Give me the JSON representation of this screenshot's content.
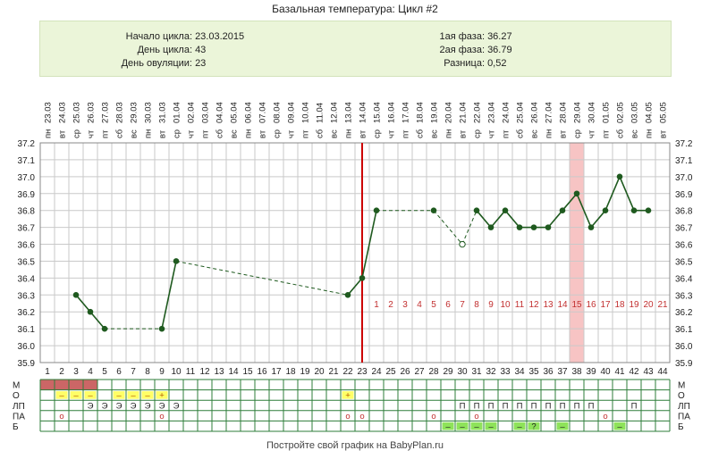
{
  "page": {
    "title": "Базальная температура: Цикл #2",
    "footer": "Постройте свой график на BabyPlan.ru"
  },
  "summary": {
    "cycle_start": {
      "label": "Начало цикла:",
      "value": "23.03.2015"
    },
    "cycle_day": {
      "label": "День цикла:",
      "value": "43"
    },
    "ovulation_day": {
      "label": "День овуляции:",
      "value": "23"
    },
    "phase1": {
      "label": "1ая фаза:",
      "value": "36.27"
    },
    "phase2": {
      "label": "2ая фаза:",
      "value": "36.79"
    },
    "difference": {
      "label": "Разница:",
      "value": "0,52"
    }
  },
  "chart_data": {
    "type": "line",
    "title": "Базальная температура: Цикл #2",
    "x_days": [
      1,
      2,
      3,
      4,
      5,
      6,
      7,
      8,
      9,
      10,
      11,
      12,
      13,
      14,
      15,
      16,
      17,
      18,
      19,
      20,
      21,
      22,
      23,
      24,
      25,
      26,
      27,
      28,
      29,
      30,
      31,
      32,
      33,
      34,
      35,
      36,
      37,
      38,
      39,
      40,
      41,
      42,
      43,
      44
    ],
    "weekdays": [
      "пн",
      "вт",
      "ср",
      "чт",
      "пт",
      "сб",
      "вс",
      "пн",
      "вт",
      "ср",
      "чт",
      "пт",
      "сб",
      "вс",
      "пн",
      "вт",
      "ср",
      "чт",
      "пт",
      "сб",
      "вс",
      "пн",
      "вт",
      "ср",
      "чт",
      "пт",
      "сб",
      "вс",
      "пн",
      "вт",
      "ср",
      "чт",
      "пт",
      "сб",
      "вс",
      "пн",
      "вт",
      "ср",
      "чт",
      "пт",
      "сб",
      "вс",
      "пн",
      "вт"
    ],
    "dates": [
      "23.03",
      "24.03",
      "25.03",
      "26.03",
      "27.03",
      "28.03",
      "29.03",
      "30.03",
      "31.03",
      "01.04",
      "02.04",
      "03.04",
      "04.04",
      "05.04",
      "06.04",
      "07.04",
      "08.04",
      "09.04",
      "10.04",
      "11.04",
      "12.04",
      "13.04",
      "14.04",
      "15.04",
      "16.04",
      "17.04",
      "18.04",
      "19.04",
      "20.04",
      "21.04",
      "22.04",
      "23.04",
      "24.04",
      "25.04",
      "26.04",
      "27.04",
      "28.04",
      "29.04",
      "30.04",
      "01.05",
      "02.05",
      "03.05",
      "04.05",
      "05.05"
    ],
    "ylim": [
      35.9,
      37.2
    ],
    "y_ticks": [
      "37.2",
      "37.1",
      "37.0",
      "36.9",
      "36.8",
      "36.7",
      "36.6",
      "36.5",
      "36.4",
      "36.3",
      "36.2",
      "36.1",
      "36.0",
      "35.9"
    ],
    "series": [
      {
        "points": [
          {
            "day": 3,
            "temp": 36.3
          },
          {
            "day": 4,
            "temp": 36.2
          },
          {
            "day": 5,
            "temp": 36.1
          },
          {
            "day": 9,
            "temp": 36.1
          },
          {
            "day": 10,
            "temp": 36.5
          },
          {
            "day": 22,
            "temp": 36.3
          },
          {
            "day": 23,
            "temp": 36.4
          },
          {
            "day": 24,
            "temp": 36.8
          },
          {
            "day": 28,
            "temp": 36.8
          },
          {
            "day": 30,
            "temp": 36.6,
            "excluded": true
          },
          {
            "day": 31,
            "temp": 36.8
          },
          {
            "day": 32,
            "temp": 36.7
          },
          {
            "day": 33,
            "temp": 36.8
          },
          {
            "day": 34,
            "temp": 36.7
          },
          {
            "day": 35,
            "temp": 36.7
          },
          {
            "day": 36,
            "temp": 36.7
          },
          {
            "day": 37,
            "temp": 36.8
          },
          {
            "day": 38,
            "temp": 36.9
          },
          {
            "day": 39,
            "temp": 36.7
          },
          {
            "day": 40,
            "temp": 36.8
          },
          {
            "day": 41,
            "temp": 37.0
          },
          {
            "day": 42,
            "temp": 36.8
          },
          {
            "day": 43,
            "temp": 36.8
          }
        ]
      }
    ],
    "ovulation_day": 23,
    "highlight_day": 38,
    "luteal_days": {
      "start_day": 24,
      "labels": [
        "1",
        "2",
        "3",
        "4",
        "5",
        "6",
        "7",
        "8",
        "9",
        "10",
        "11",
        "12",
        "13",
        "14",
        "15",
        "16",
        "17",
        "18",
        "19",
        "20",
        "21"
      ]
    },
    "grid": true,
    "colors": {
      "line": "#1f5a1f",
      "point": "#1f5a1f",
      "ovulation": "#cc0000",
      "highlight": "#f7c4c4",
      "luteal_numbers": "#c23030",
      "bleeding": "#cc6666",
      "yellow": "#ffff66",
      "green": "#8ee35a"
    }
  },
  "bottom_table": {
    "row_labels": [
      "М",
      "О",
      "ЛП",
      "ПА",
      "Б"
    ],
    "rows": {
      "M": {
        "bleeding_days": [
          1,
          2,
          3,
          4
        ]
      },
      "O": {
        "cells": [
          {
            "day": 2,
            "text": "–",
            "bg": "yellow"
          },
          {
            "day": 3,
            "text": "–",
            "bg": "yellow"
          },
          {
            "day": 4,
            "text": "–",
            "bg": "yellow"
          },
          {
            "day": 6,
            "text": "–",
            "bg": "yellow"
          },
          {
            "day": 7,
            "text": "–",
            "bg": "yellow"
          },
          {
            "day": 8,
            "text": "–",
            "bg": "yellow"
          },
          {
            "day": 9,
            "text": "+",
            "bg": "yellow"
          },
          {
            "day": 22,
            "text": "+",
            "bg": "yellow"
          }
        ]
      },
      "LP": {
        "cells": [
          {
            "day": 4,
            "text": "Э"
          },
          {
            "day": 5,
            "text": "Э"
          },
          {
            "day": 6,
            "text": "Э"
          },
          {
            "day": 7,
            "text": "Э"
          },
          {
            "day": 8,
            "text": "Э"
          },
          {
            "day": 9,
            "text": "Э"
          },
          {
            "day": 10,
            "text": "Э"
          },
          {
            "day": 30,
            "text": "П"
          },
          {
            "day": 31,
            "text": "П"
          },
          {
            "day": 32,
            "text": "П"
          },
          {
            "day": 33,
            "text": "П"
          },
          {
            "day": 34,
            "text": "П"
          },
          {
            "day": 35,
            "text": "П"
          },
          {
            "day": 36,
            "text": "П"
          },
          {
            "day": 37,
            "text": "П"
          },
          {
            "day": 38,
            "text": "П"
          },
          {
            "day": 39,
            "text": "П"
          },
          {
            "day": 42,
            "text": "П"
          }
        ]
      },
      "PA": {
        "cells": [
          {
            "day": 2,
            "text": "о"
          },
          {
            "day": 9,
            "text": "о"
          },
          {
            "day": 22,
            "text": "о"
          },
          {
            "day": 23,
            "text": "о"
          },
          {
            "day": 28,
            "text": "о"
          },
          {
            "day": 31,
            "text": "о"
          },
          {
            "day": 40,
            "text": "о"
          }
        ]
      },
      "B": {
        "cells": [
          {
            "day": 29,
            "text": "–",
            "bg": "green"
          },
          {
            "day": 30,
            "text": "–",
            "bg": "green"
          },
          {
            "day": 31,
            "text": "–",
            "bg": "green"
          },
          {
            "day": 32,
            "text": "–",
            "bg": "green"
          },
          {
            "day": 34,
            "text": "–",
            "bg": "green"
          },
          {
            "day": 35,
            "text": "?",
            "bg": "green"
          },
          {
            "day": 37,
            "text": "–",
            "bg": "green"
          },
          {
            "day": 41,
            "text": "–",
            "bg": "green"
          }
        ]
      }
    }
  }
}
